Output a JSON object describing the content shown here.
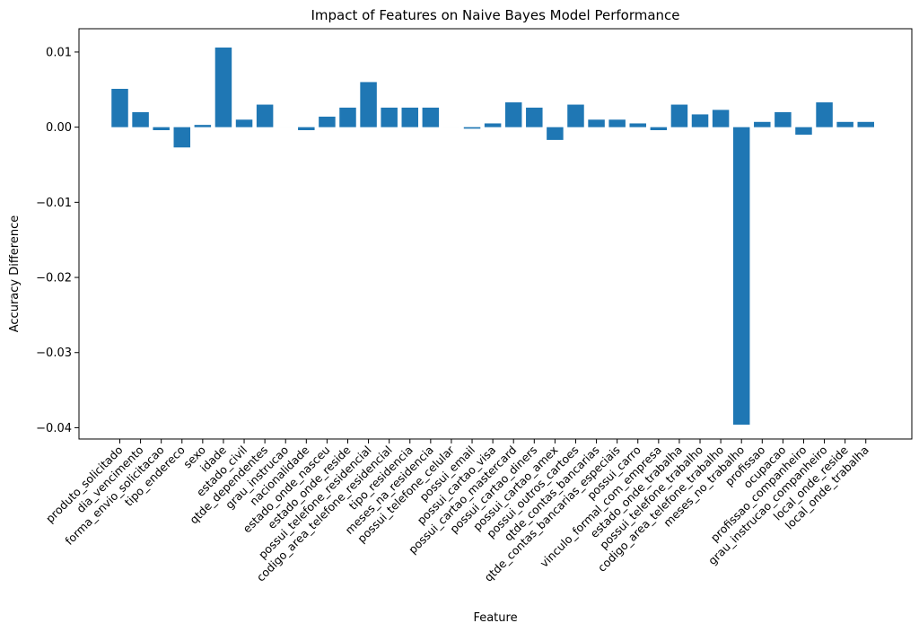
{
  "chart_data": {
    "type": "bar",
    "title": "Impact of Features on Naive Bayes Model Performance",
    "xlabel": "Feature",
    "ylabel": "Accuracy Difference",
    "ylim": [
      -0.0415,
      0.0131
    ],
    "yticks": [
      0.01,
      0.0,
      -0.01,
      -0.02,
      -0.03,
      -0.04
    ],
    "ytick_labels": [
      "0.01",
      "0.00",
      "−0.01",
      "−0.02",
      "−0.03",
      "−0.04"
    ],
    "bar_color": "#1f77b4",
    "grid": false,
    "legend": false,
    "categories": [
      "produto_solicitado",
      "dia_vencimento",
      "forma_envio_solicitacao",
      "tipo_endereco",
      "sexo",
      "idade",
      "estado_civil",
      "qtde_dependentes",
      "grau_instrucao",
      "nacionalidade",
      "estado_onde_nasceu",
      "estado_onde_reside",
      "possui_telefone_residencial",
      "codigo_area_telefone_residencial",
      "tipo_residencia",
      "meses_na_residencia",
      "possui_telefone_celular",
      "possui_email",
      "possui_cartao_visa",
      "possui_cartao_mastercard",
      "possui_cartao_diners",
      "possui_cartao_amex",
      "possui_outros_cartoes",
      "qtde_contas_bancarias",
      "qtde_contas_bancarias_especiais",
      "possui_carro",
      "vinculo_formal_com_empresa",
      "estado_onde_trabalha",
      "possui_telefone_trabalho",
      "codigo_area_telefone_trabalho",
      "meses_no_trabalho",
      "profissao",
      "ocupacao",
      "profissao_companheiro",
      "grau_instrucao_companheiro",
      "local_onde_reside",
      "local_onde_trabalha"
    ],
    "values": [
      0.0051,
      0.002,
      -0.0004,
      -0.0027,
      0.0003,
      0.0106,
      0.001,
      0.003,
      0.0,
      -0.0004,
      0.0014,
      0.0026,
      0.006,
      0.0026,
      0.0026,
      0.0026,
      0.0,
      -0.0002,
      0.0005,
      0.0033,
      0.0026,
      -0.0017,
      0.003,
      0.001,
      0.001,
      0.0005,
      -0.0004,
      0.003,
      0.0017,
      0.0023,
      -0.0396,
      0.0007,
      0.002,
      -0.001,
      0.0033,
      0.0007,
      0.0007
    ]
  }
}
